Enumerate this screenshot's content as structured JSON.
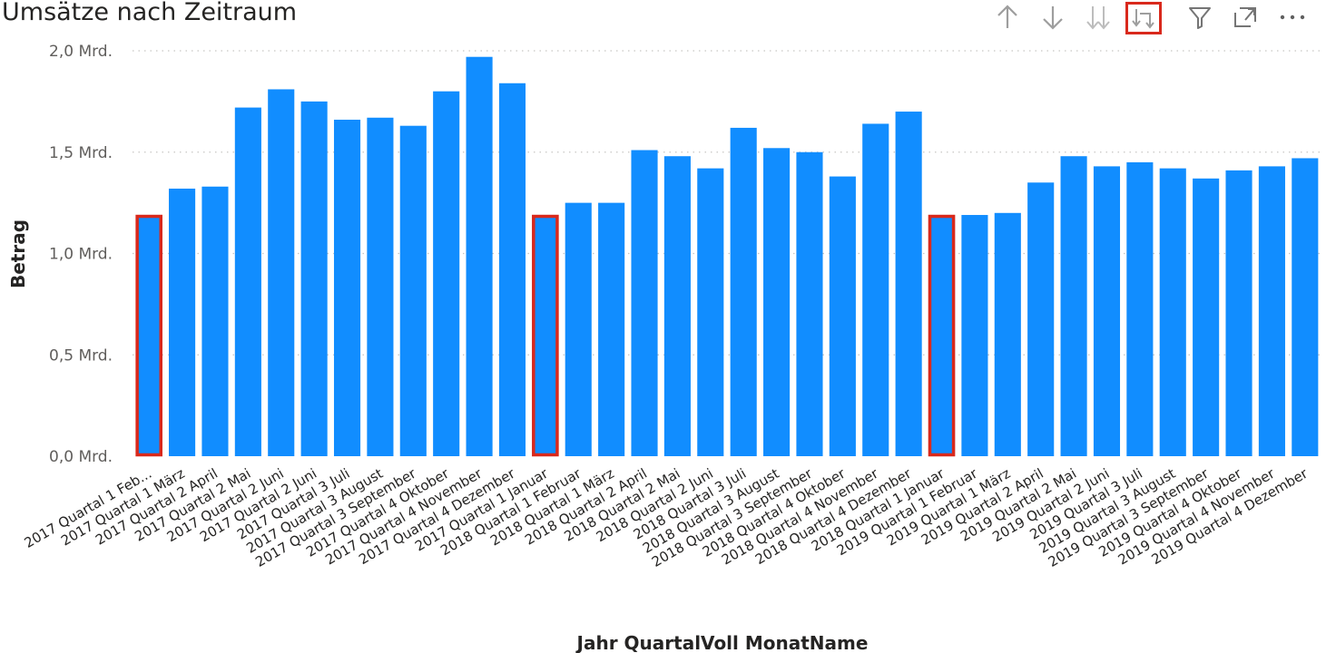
{
  "toolbar": {
    "icons": [
      "arrow-up-icon",
      "arrow-down-icon",
      "double-arrow-down-icon",
      "expand-hierarchy-icon",
      "filter-icon",
      "focus-mode-icon",
      "more-options-icon"
    ],
    "active_icon": "expand-hierarchy-icon",
    "icon_color": "#9e9e9e",
    "highlight_color": "#d9291c"
  },
  "chart_data": {
    "type": "bar",
    "title": "Umsätze nach Zeitraum",
    "xlabel": "Jahr QuartalVoll MonatName",
    "ylabel": "Betrag",
    "ylim": [
      0,
      2.0
    ],
    "yticks": [
      "0,0 Mrd.",
      "0,5 Mrd.",
      "1,0 Mrd.",
      "1,5 Mrd.",
      "2,0 Mrd."
    ],
    "grid": true,
    "bar_color": "#118dff",
    "highlight_color": "#d9291c",
    "highlighted": [
      0,
      12,
      24
    ],
    "categories": [
      "2017 Quartal 1 Feb...",
      "2017 Quartal 1 März",
      "2017 Quartal 2 April",
      "2017 Quartal 2 Mai",
      "2017 Quartal 2 Juni",
      "2017 Quartal 2 Juni",
      "2017 Quartal 3 Juli",
      "2017 Quartal 3 August",
      "2017 Quartal 3 September",
      "2017 Quartal 4 Oktober",
      "2017 Quartal 4 November",
      "2017 Quartal 4 Dezember",
      "2017 Quartal 1 Januar",
      "2018 Quartal 1 Februar",
      "2018 Quartal 1 März",
      "2018 Quartal 2 April",
      "2018 Quartal 2 Mai",
      "2018 Quartal 2 Juni",
      "2018 Quartal 3 Juli",
      "2018 Quartal 3 August",
      "2018 Quartal 3 September",
      "2018 Quartal 4 Oktober",
      "2018 Quartal 4 November",
      "2018 Quartal 4 Dezember",
      "2018 Quartal 1 Januar",
      "2019 Quartal 1 Februar",
      "2019 Quartal 1 März",
      "2019 Quartal 2 April",
      "2019 Quartal 2 Mai",
      "2019 Quartal 2 Juni",
      "2019 Quartal 3 Juli",
      "2019 Quartal 3 August",
      "2019 Quartal 3 September",
      "2019 Quartal 4 Oktober",
      "2019 Quartal 4 November",
      "2019 Quartal 4 Dezember"
    ],
    "values": [
      1.19,
      1.32,
      1.33,
      1.72,
      1.81,
      1.75,
      1.66,
      1.67,
      1.63,
      1.8,
      1.97,
      1.84,
      1.19,
      1.25,
      1.25,
      1.51,
      1.48,
      1.42,
      1.62,
      1.52,
      1.5,
      1.38,
      1.64,
      1.7,
      1.19,
      1.19,
      1.2,
      1.35,
      1.48,
      1.43,
      1.45,
      1.42,
      1.37,
      1.41,
      1.43,
      1.47
    ]
  }
}
